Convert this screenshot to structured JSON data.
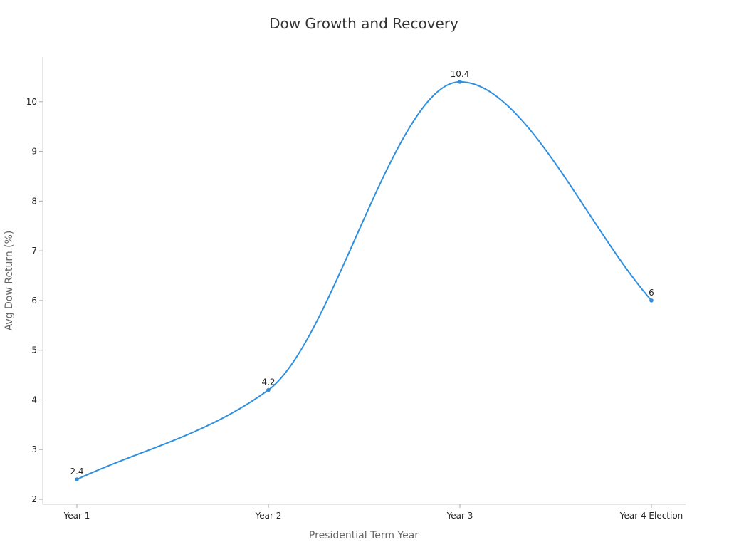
{
  "chart_data": {
    "type": "line",
    "title": "Dow Growth and Recovery",
    "xlabel": "Presidential Term Year",
    "ylabel": "Avg Dow Return (%)",
    "categories": [
      "Year 1",
      "Year 2",
      "Year 3",
      "Year 4 Election"
    ],
    "series": [
      {
        "values": [
          2.4,
          4.2,
          10.4,
          6
        ]
      }
    ],
    "data_labels": [
      "2.4",
      "4.2",
      "10.4",
      "6"
    ],
    "y_ticks": [
      2,
      3,
      4,
      5,
      6,
      7,
      8,
      9,
      10
    ],
    "y_tick_labels": [
      "2",
      "3",
      "4",
      "5",
      "6",
      "7",
      "8",
      "9",
      "10"
    ],
    "ylim": [
      1.9,
      10.9
    ],
    "grid": false,
    "line_style": "smooth",
    "colors": {
      "line": "#2e8fdf"
    }
  }
}
